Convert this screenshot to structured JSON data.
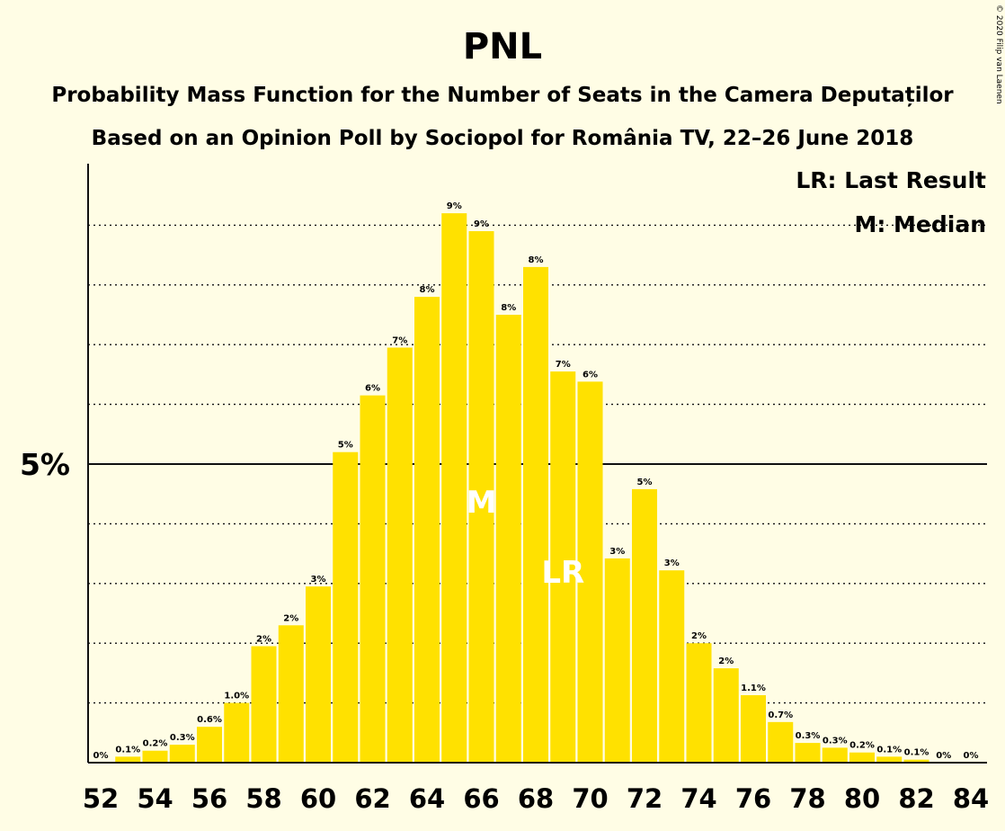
{
  "chart_data": {
    "type": "bar",
    "title": "PNL",
    "subtitle1": "Probability Mass Function for the Number of Seats in the Camera Deputaților",
    "subtitle2": "Based on an Opinion Poll by Sociopol for România TV, 22–26 June 2018",
    "legend": [
      "LR: Last Result",
      "M: Median"
    ],
    "copyright": "© 2020 Filip van Laenen",
    "ytick_label": "5%",
    "x": [
      52,
      53,
      54,
      55,
      56,
      57,
      58,
      59,
      60,
      61,
      62,
      63,
      64,
      65,
      66,
      67,
      68,
      69,
      70,
      71,
      72,
      73,
      74,
      75,
      76,
      77,
      78,
      79,
      80,
      81,
      82,
      83,
      84
    ],
    "values": [
      0,
      0.1,
      0.2,
      0.3,
      0.6,
      1.0,
      1.95,
      2.3,
      2.95,
      5.2,
      6.15,
      6.95,
      7.8,
      9.2,
      8.9,
      7.5,
      8.3,
      6.55,
      6.38,
      3.42,
      4.58,
      3.22,
      2.0,
      1.58,
      1.13,
      0.68,
      0.33,
      0.25,
      0.17,
      0.1,
      0.05,
      0,
      0
    ],
    "labels": [
      "0%",
      "0.1%",
      "0.2%",
      "0.3%",
      "0.6%",
      "1.0%",
      "2%",
      "2%",
      "3%",
      "5%",
      "6%",
      "7%",
      "8%",
      "9%",
      "9%",
      "8%",
      "8%",
      "7%",
      "6%",
      "3%",
      "5%",
      "3%",
      "2%",
      "2%",
      "1.1%",
      "0.7%",
      "0.3%",
      "0.3%",
      "0.2%",
      "0.1%",
      "0.1%",
      "0%",
      "0%"
    ],
    "x_ticks": [
      52,
      54,
      56,
      58,
      60,
      62,
      64,
      66,
      68,
      70,
      72,
      74,
      76,
      78,
      80,
      82,
      84
    ],
    "median": 66,
    "last_result": 69,
    "median_label": "M",
    "last_result_label": "LR",
    "ylim": [
      0,
      10
    ],
    "grid": "dotted",
    "legend_position": "top-right",
    "colors": {
      "bar": "#ffe100",
      "background": "#fffde5",
      "text": "#111111"
    }
  }
}
